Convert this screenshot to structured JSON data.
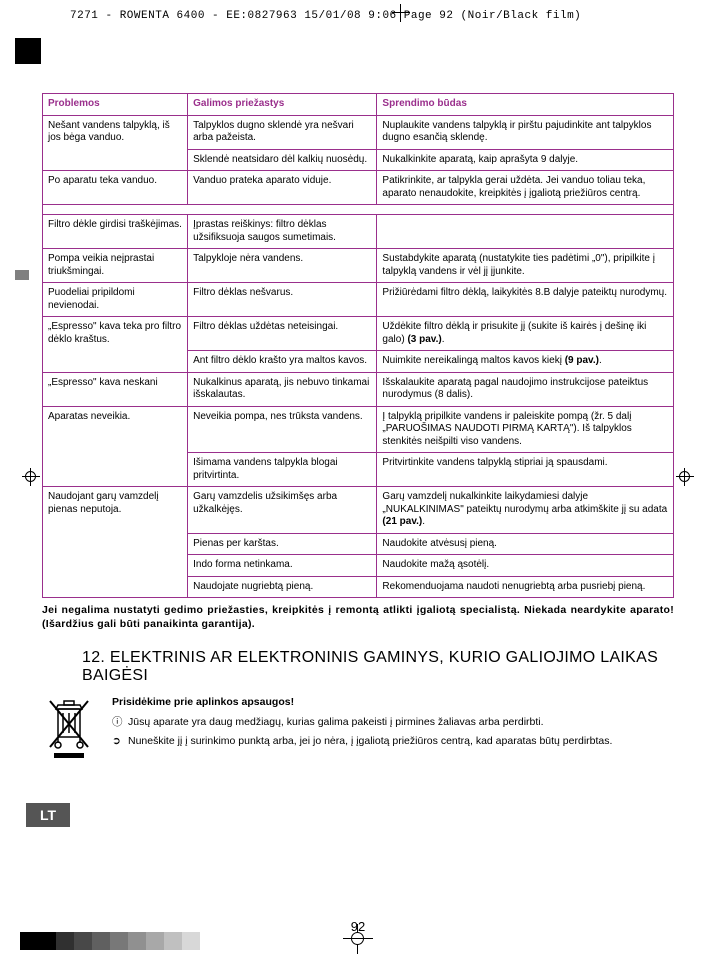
{
  "header_line": "7271 - ROWENTA 6400 - EE:0827963  15/01/08  9:06  Page 92  (Noir/Black film)",
  "badge": "LT",
  "page_number": "92",
  "table": {
    "headers": [
      "Problemos",
      "Galimos priežastys",
      "Sprendimo būdas"
    ],
    "rows": [
      {
        "p": "Nešant vandens talpyklą, iš jos bėga vanduo.",
        "c": "Talpyklos dugno sklendė yra nešvari arba pažeista.",
        "s": "Nuplaukite vandens talpyklą ir pirštu pajudinkite ant talpyklos dugno esančią sklendę.",
        "ps": 2,
        "justS": true
      },
      {
        "c": "Sklendė neatsidaro dėl kalkių nuosėdų.",
        "s": "Nukalkinkite aparatą, kaip aprašyta 9 dalyje.",
        "justC": true
      },
      {
        "p": "Po aparatu teka vanduo.",
        "c": "Vanduo prateka aparato viduje.",
        "s": "Patikrinkite, ar talpykla gerai uždėta. Jei vanduo toliau teka, aparato nenaudokite, kreipkitės į įgaliotą priežiūros centrą.",
        "ps": 1
      },
      {
        "blank": true,
        "cols": 3
      },
      {
        "p": "Filtro dėkle girdisi traškėjimas.",
        "c": "Įprastas reiškinys: filtro dėklas užsifiksuoja saugos sumetimais.",
        "s": "",
        "ps": 1
      },
      {
        "p": "Pompa veikia neįprastai triukšmingai.",
        "c": "Talpykloje nėra vandens.",
        "s": "Sustabdykite aparatą (nustatykite ties padėtimi „0\"), pripilkite į talpyklą vandens ir vėl jį įjunkite.",
        "ps": 1
      },
      {
        "p": "Puodeliai pripildomi nevienodai.",
        "c": "Filtro dėklas nešvarus.",
        "s": "Prižiūrėdami filtro dėklą, laikykitės 8.B dalyje pateiktų nurodymų.",
        "ps": 1
      },
      {
        "p": "„Espresso\" kava teka pro filtro dėklo kraštus.",
        "c": "Filtro dėklas uždėtas neteisingai.",
        "s": "Uždėkite filtro dėklą ir prisukite jį (sukite iš kairės į dešinę iki galo) <b>(3 pav.)</b>.",
        "ps": 2
      },
      {
        "c": "Ant filtro dėklo krašto yra maltos kavos.",
        "s": "Nuimkite nereikalingą maltos kavos kiekį <b>(9 pav.)</b>.",
        "justS": true
      },
      {
        "p": "„Espresso\" kava neskani",
        "c": "Nukalkinus aparatą, jis nebuvo tinkamai išskalautas.",
        "s": "Išskalaukite aparatą pagal naudojimo instrukcijose pateiktus nurodymus (8 dalis).",
        "ps": 1
      },
      {
        "p": "Aparatas neveikia.",
        "c": "Neveikia pompa, nes trūksta vandens.",
        "s": "Į talpyklą pripilkite vandens ir paleiskite pompą (žr. 5 dalį „PARUOŠIMAS NAUDOTI PIRMĄ KARTĄ\"). Iš talpyklos stenkitės neišpilti viso vandens.",
        "ps": 2,
        "justS": true
      },
      {
        "c": "Išimama vandens talpykla blogai pritvirtinta.",
        "s": "Pritvirtinkite vandens talpyklą stipriai ją spausdami.",
        "justS": true
      },
      {
        "p": "Naudojant garų vamzdelį pienas neputoja.",
        "c": "Garų vamzdelis užsikimšęs arba užkalkėjęs.",
        "s": "Garų vamzdelį nukalkinkite laikydamiesi dalyje „NUKALKINIMAS\" pateiktų nurodymų arba atkimškite jį su adata <b>(21 pav.)</b>.",
        "ps": 4,
        "justS": true
      },
      {
        "c": "Pienas per karštas.",
        "s": "Naudokite atvėsusį pieną."
      },
      {
        "c": "Indo forma netinkama.",
        "s": "Naudokite mažą ąsotėlį."
      },
      {
        "c": "Naudojate nugriebtą pieną.",
        "s": "Rekomenduojama naudoti nenugriebtą arba pusriebį pieną."
      }
    ]
  },
  "note": "Jei negalima nustatyti gedimo priežasties, kreipkitės į remontą atlikti įgaliotą specialistą. Niekada neardykite aparato! (Išardžius gali būti panaikinta garantija).",
  "section_title": "12. ELEKTRINIS AR ELEKTRONINIS GAMINYS, KURIO GALIOJIMO LAIKAS BAIGĖSI",
  "eco": {
    "heading": "Prisidėkime prie aplinkos apsaugos!",
    "items": [
      {
        "bullet": "ⓘ",
        "text": "Jūsų aparate yra daug medžiagų, kurias galima pakeisti į pirmines žaliavas arba perdirbti."
      },
      {
        "bullet": "➲",
        "text": "Nuneškite jį į surinkimo punktą arba, jei jo nėra, į įgaliotą priežiūros centrą, kad aparatas būtų perdirbtas."
      }
    ]
  },
  "reg_colors": [
    "#000000",
    "#000000",
    "#303030",
    "#484848",
    "#606060",
    "#787878",
    "#909090",
    "#a8a8a8",
    "#c0c0c0",
    "#d8d8d8"
  ],
  "icon_stroke": "#000000"
}
